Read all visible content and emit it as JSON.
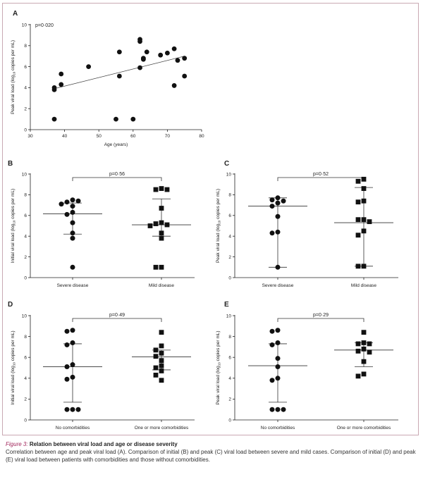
{
  "caption": {
    "label": "Figure 3:",
    "title": "Relation between viral load and age or disease severity",
    "body": "Correlation between age and peak viral load (A). Comparison of initial (B) and peak (C) viral load between severe and mild cases. Comparison of initial (D) and peak (E) viral load between patients with comorbidities and those without comorbidities."
  },
  "ylabel_subscript": "10",
  "chart_data": [
    {
      "id": "A",
      "type": "scatter",
      "letter": "A",
      "pvalue": "p=0·020",
      "xlabel": "Age (years)",
      "ylabel_pre": "Peak viral load (log",
      "ylabel_post": " copies per mL)",
      "xlim": [
        30,
        80
      ],
      "ylim": [
        0,
        10
      ],
      "xticks": [
        "30",
        "40",
        "50",
        "60",
        "70",
        "80"
      ],
      "yticks": [
        "0",
        "2",
        "4",
        "6",
        "8",
        "10"
      ],
      "x": [
        37,
        37,
        37,
        39,
        39,
        47,
        55,
        56,
        56,
        60,
        62,
        62,
        62,
        63,
        63,
        64,
        68,
        70,
        72,
        72,
        73,
        75,
        75
      ],
      "y": [
        1.0,
        3.8,
        4.0,
        4.3,
        5.3,
        6.0,
        1.0,
        5.1,
        7.4,
        1.0,
        5.9,
        8.4,
        8.6,
        6.7,
        6.8,
        7.4,
        7.1,
        7.3,
        4.2,
        7.7,
        6.6,
        5.1,
        6.8
      ],
      "regression": {
        "x": [
          37,
          75
        ],
        "y": [
          3.9,
          7.0
        ]
      }
    },
    {
      "id": "B",
      "type": "scatter",
      "letter": "B",
      "pvalue": "p=0·56",
      "ylabel_pre": "Initial viral load (log",
      "ylabel_post": " copies per mL)",
      "ylim": [
        0,
        10
      ],
      "yticks": [
        "0",
        "2",
        "4",
        "6",
        "8",
        "10"
      ],
      "categories": [
        "Severe disease",
        "Mild disease"
      ],
      "groups": [
        {
          "marker": "circle",
          "values": [
            7.5,
            7.3,
            7.4,
            7.1,
            6.9,
            6.3,
            6.1,
            5.3,
            4.3,
            3.8,
            1.0
          ],
          "mean": 6.15,
          "upper": 7.2,
          "lower": 4.2
        },
        {
          "marker": "square",
          "values": [
            8.6,
            8.5,
            8.5,
            6.7,
            5.3,
            5.2,
            5.1,
            5.0,
            4.3,
            3.8,
            1.0,
            1.0
          ],
          "mean": 5.1,
          "upper": 7.6,
          "lower": 4.0
        }
      ]
    },
    {
      "id": "C",
      "type": "scatter",
      "letter": "C",
      "pvalue": "p=0·52",
      "ylabel_pre": "Peak viral load (log",
      "ylabel_post": " copies per mL)",
      "ylim": [
        0,
        10
      ],
      "yticks": [
        "0",
        "2",
        "4",
        "6",
        "8",
        "10"
      ],
      "categories": [
        "Severe disease",
        "Mild disease"
      ],
      "groups": [
        {
          "marker": "circle",
          "values": [
            7.7,
            7.5,
            7.4,
            7.2,
            6.9,
            5.9,
            4.4,
            4.3,
            1.0
          ],
          "mean": 6.9,
          "upper": 7.7,
          "lower": 1.0
        },
        {
          "marker": "square",
          "values": [
            9.5,
            9.3,
            8.6,
            7.4,
            7.3,
            5.6,
            5.6,
            5.4,
            4.5,
            4.1,
            1.1,
            1.1
          ],
          "mean": 5.3,
          "upper": 8.7,
          "lower": 1.1
        }
      ]
    },
    {
      "id": "D",
      "type": "scatter",
      "letter": "D",
      "pvalue": "p=0·49",
      "ylabel_pre": "Initial viral load (log",
      "ylabel_post": " copies per mL)",
      "ylim": [
        0,
        10
      ],
      "yticks": [
        "0",
        "2",
        "4",
        "6",
        "8",
        "10"
      ],
      "categories": [
        "No comorbidities",
        "One or more comorbidities"
      ],
      "groups": [
        {
          "marker": "circle",
          "values": [
            8.6,
            8.5,
            7.4,
            7.2,
            5.3,
            5.1,
            4.1,
            3.9,
            1.0,
            1.0,
            1.0
          ],
          "mean": 5.1,
          "upper": 7.3,
          "lower": 1.7
        },
        {
          "marker": "square",
          "values": [
            8.4,
            7.1,
            6.7,
            6.4,
            6.1,
            5.7,
            5.2,
            5.0,
            4.7,
            4.3,
            3.8
          ],
          "mean": 6.05,
          "upper": 6.7,
          "lower": 4.8
        }
      ]
    },
    {
      "id": "E",
      "type": "scatter",
      "letter": "E",
      "pvalue": "p=0·29",
      "ylabel_pre": "Peak viral load (log",
      "ylabel_post": " copies per mL)",
      "ylim": [
        0,
        10
      ],
      "yticks": [
        "0",
        "2",
        "4",
        "6",
        "8",
        "10"
      ],
      "categories": [
        "No comorbidities",
        "One or more comorbidities"
      ],
      "groups": [
        {
          "marker": "circle",
          "values": [
            8.6,
            8.5,
            7.4,
            7.2,
            5.9,
            5.1,
            4.0,
            3.8,
            1.0,
            1.0,
            1.0
          ],
          "mean": 5.2,
          "upper": 7.3,
          "lower": 1.7
        },
        {
          "marker": "square",
          "values": [
            8.4,
            7.4,
            7.3,
            7.3,
            6.8,
            6.6,
            6.5,
            5.6,
            4.4,
            4.2
          ],
          "mean": 6.7,
          "upper": 7.4,
          "lower": 5.1
        }
      ]
    }
  ]
}
